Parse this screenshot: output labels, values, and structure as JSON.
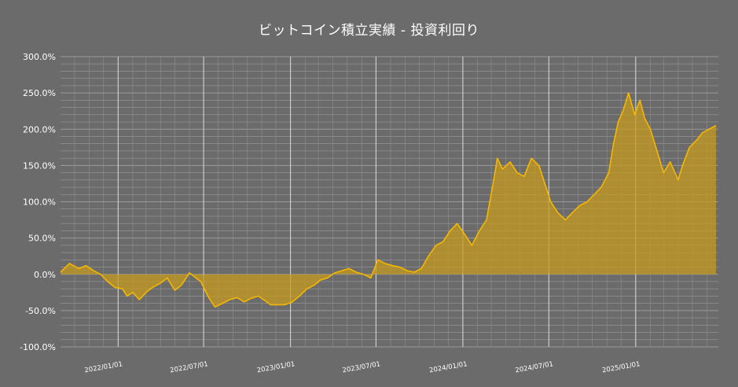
{
  "chart_data": {
    "type": "area",
    "title": "ビットコイン積立実績 ‐ 投資利回り",
    "xlabel": "",
    "ylabel": "",
    "ylim": [
      -100,
      300
    ],
    "y_tick_labels": [
      "300.0%",
      "250.0%",
      "200.0%",
      "150.0%",
      "100.0%",
      "50.0%",
      "0.0%",
      "-50.0%",
      "-100.0%"
    ],
    "y_tick_values": [
      300,
      250,
      200,
      150,
      100,
      50,
      0,
      -50,
      -100
    ],
    "x_tick_labels": [
      "2022/01/01",
      "2022/07/01",
      "2023/01/01",
      "2023/07/01",
      "2024/01/01",
      "2024/07/01",
      "2025/01/01"
    ],
    "xlim": [
      "2021-09-01",
      "2025-06-25"
    ],
    "grid": true,
    "legend": "none",
    "colors": {
      "background": "#6b6b6b",
      "line": "#f5b800",
      "fill": "#c49a1c",
      "grid": "#9a9a9a",
      "text": "#ffffff"
    },
    "series": [
      {
        "x": [
          "2021-09-01",
          "2021-09-20",
          "2021-10-10",
          "2021-10-25",
          "2021-11-10",
          "2021-11-25",
          "2021-12-10",
          "2021-12-25",
          "2022-01-10",
          "2022-01-20",
          "2022-02-01",
          "2022-02-15",
          "2022-03-01",
          "2022-03-15",
          "2022-04-01",
          "2022-04-15",
          "2022-05-01",
          "2022-05-15",
          "2022-06-01",
          "2022-06-15",
          "2022-06-25",
          "2022-07-10",
          "2022-07-25",
          "2022-08-10",
          "2022-08-25",
          "2022-09-10",
          "2022-09-25",
          "2022-10-10",
          "2022-10-25",
          "2022-11-05",
          "2022-11-20",
          "2022-12-05",
          "2022-12-20",
          "2023-01-05",
          "2023-01-20",
          "2023-02-05",
          "2023-02-20",
          "2023-03-05",
          "2023-03-20",
          "2023-04-05",
          "2023-04-20",
          "2023-05-05",
          "2023-05-20",
          "2023-06-05",
          "2023-06-20",
          "2023-07-05",
          "2023-07-20",
          "2023-08-05",
          "2023-08-20",
          "2023-09-05",
          "2023-09-20",
          "2023-10-05",
          "2023-10-20",
          "2023-11-05",
          "2023-11-20",
          "2023-12-05",
          "2023-12-20",
          "2024-01-05",
          "2024-01-20",
          "2024-02-05",
          "2024-02-20",
          "2024-03-05",
          "2024-03-14",
          "2024-03-25",
          "2024-04-10",
          "2024-04-25",
          "2024-05-10",
          "2024-05-25",
          "2024-06-10",
          "2024-06-25",
          "2024-07-05",
          "2024-07-20",
          "2024-08-05",
          "2024-08-20",
          "2024-09-05",
          "2024-09-20",
          "2024-10-05",
          "2024-10-20",
          "2024-11-05",
          "2024-11-15",
          "2024-11-25",
          "2024-12-05",
          "2024-12-17",
          "2024-12-30",
          "2025-01-10",
          "2025-01-20",
          "2025-02-01",
          "2025-02-15",
          "2025-03-01",
          "2025-03-15",
          "2025-04-01",
          "2025-04-10",
          "2025-04-25",
          "2025-05-10",
          "2025-05-22",
          "2025-06-05",
          "2025-06-20"
        ],
        "values": [
          3,
          15,
          8,
          12,
          5,
          0,
          -10,
          -18,
          -20,
          -30,
          -25,
          -35,
          -25,
          -18,
          -12,
          -5,
          -22,
          -15,
          2,
          -5,
          -10,
          -30,
          -45,
          -40,
          -35,
          -32,
          -38,
          -33,
          -30,
          -35,
          -42,
          -42,
          -42,
          -38,
          -30,
          -20,
          -15,
          -8,
          -5,
          2,
          5,
          8,
          3,
          0,
          -5,
          20,
          15,
          12,
          10,
          5,
          3,
          8,
          25,
          40,
          45,
          60,
          70,
          55,
          40,
          60,
          75,
          125,
          160,
          145,
          155,
          140,
          135,
          160,
          150,
          120,
          100,
          85,
          75,
          85,
          95,
          100,
          110,
          120,
          140,
          180,
          210,
          225,
          250,
          220,
          240,
          215,
          200,
          170,
          140,
          155,
          130,
          150,
          175,
          185,
          195,
          200,
          205
        ]
      }
    ]
  }
}
